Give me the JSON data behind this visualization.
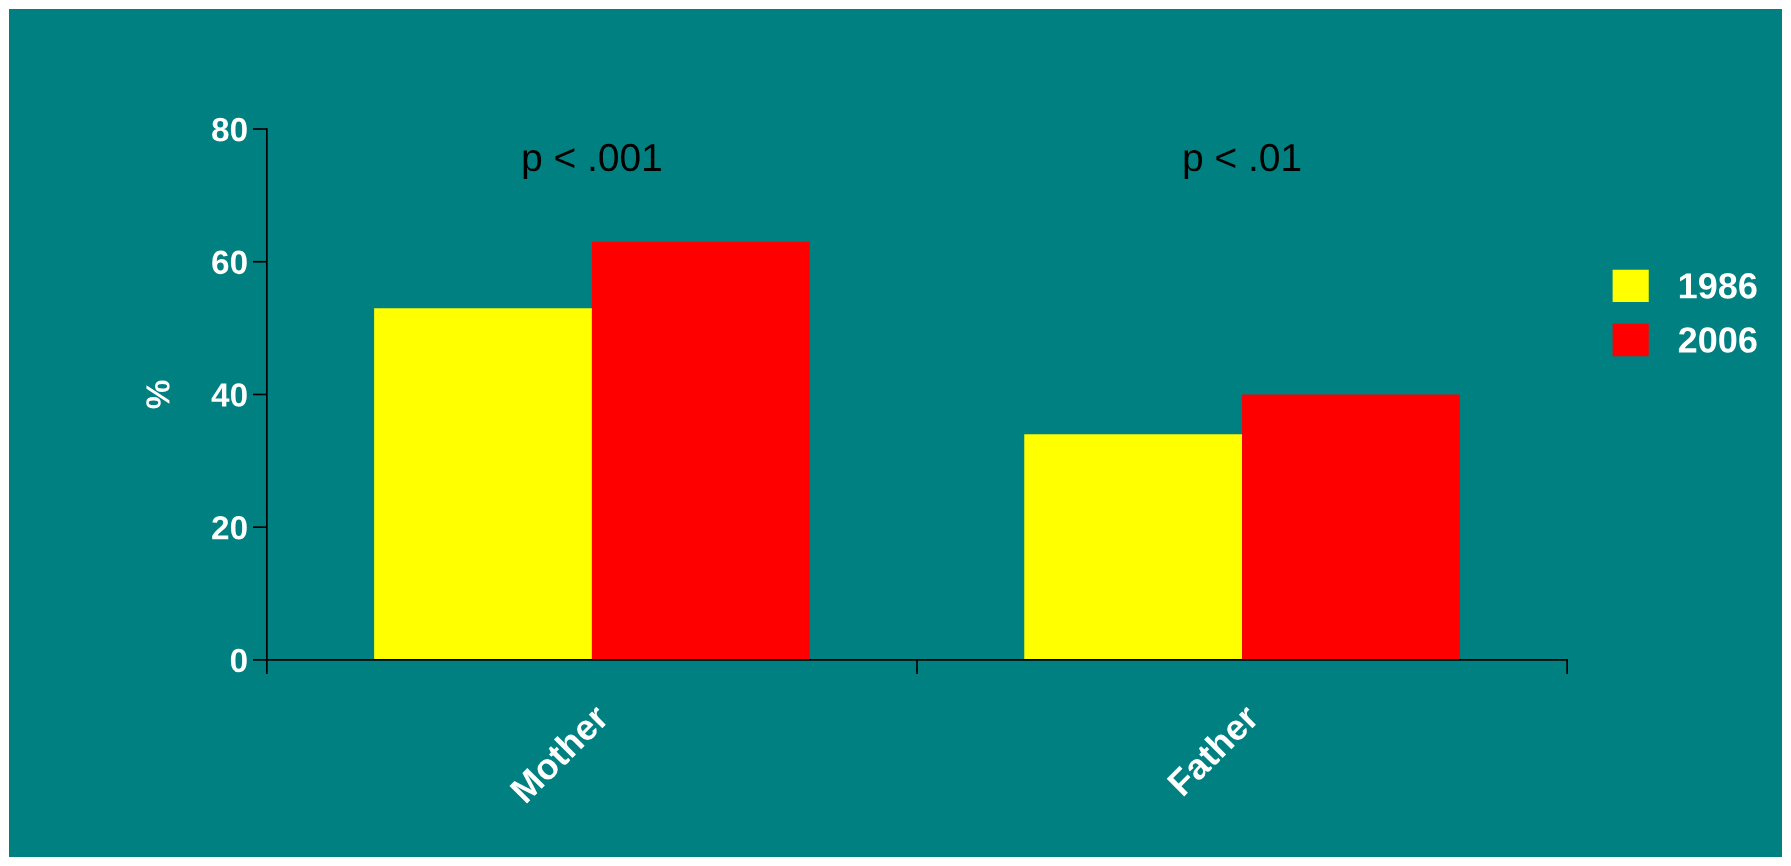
{
  "chart_data": {
    "type": "bar",
    "ylabel": "%",
    "categories": [
      "Mother",
      "Father"
    ],
    "series": [
      {
        "name": "1986",
        "color": "#ffff00",
        "values": [
          53,
          34
        ]
      },
      {
        "name": "2006",
        "color": "#ff0000",
        "values": [
          63,
          40
        ]
      }
    ],
    "ylim": [
      0,
      80
    ],
    "yticks": [
      0,
      20,
      40,
      60,
      80
    ],
    "grid": false,
    "legend": "right",
    "annotations": [
      "p < .001",
      "p < .01"
    ]
  }
}
